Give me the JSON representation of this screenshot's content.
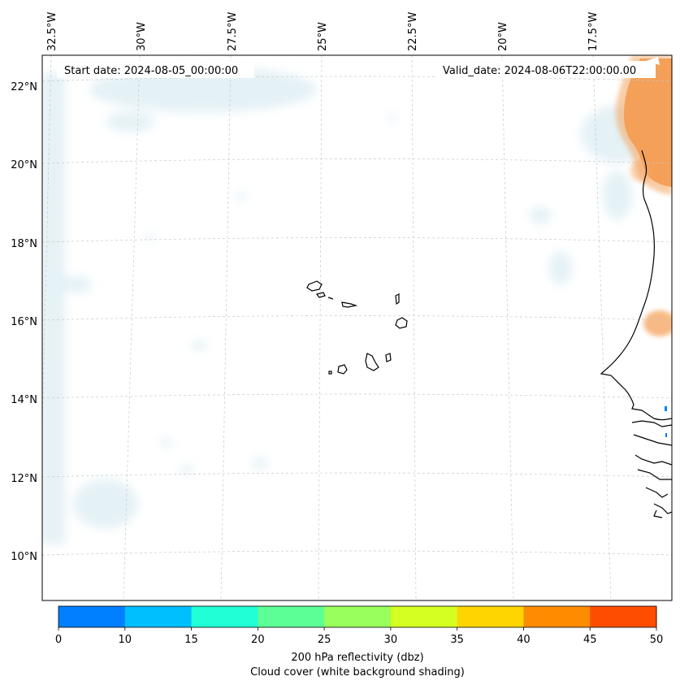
{
  "header": {
    "start_date": "Start date: 2024-08-05_00:00:00",
    "valid_date": "Valid_date: 2024-08-06T22:00:00.00"
  },
  "map": {
    "region": "Cape Verde and West African coast",
    "lon_labels": [
      "32.5°W",
      "30°W",
      "27.5°W",
      "25°W",
      "22.5°W",
      "20°W",
      "17.5°W"
    ],
    "lat_labels": [
      "22°N",
      "20°N",
      "18°N",
      "16°N",
      "14°N",
      "12°N",
      "10°N"
    ]
  },
  "colorbar": {
    "ticks": [
      "0",
      "10",
      "15",
      "20",
      "25",
      "30",
      "35",
      "40",
      "45",
      "50"
    ],
    "colors": [
      "#007fff",
      "#00bfff",
      "#20ffd5",
      "#5cff95",
      "#99ff5c",
      "#d5ff20",
      "#ffd500",
      "#ff8c00",
      "#ff4d00"
    ],
    "label": "200 hPa reflectivity (dbz)",
    "sublabel": "Cloud cover (white background shading)"
  },
  "colors": {
    "cloud": "#cfe6ee",
    "dust": "#f5a35c",
    "grid": "#c8c8c8",
    "coast": "#000000"
  }
}
